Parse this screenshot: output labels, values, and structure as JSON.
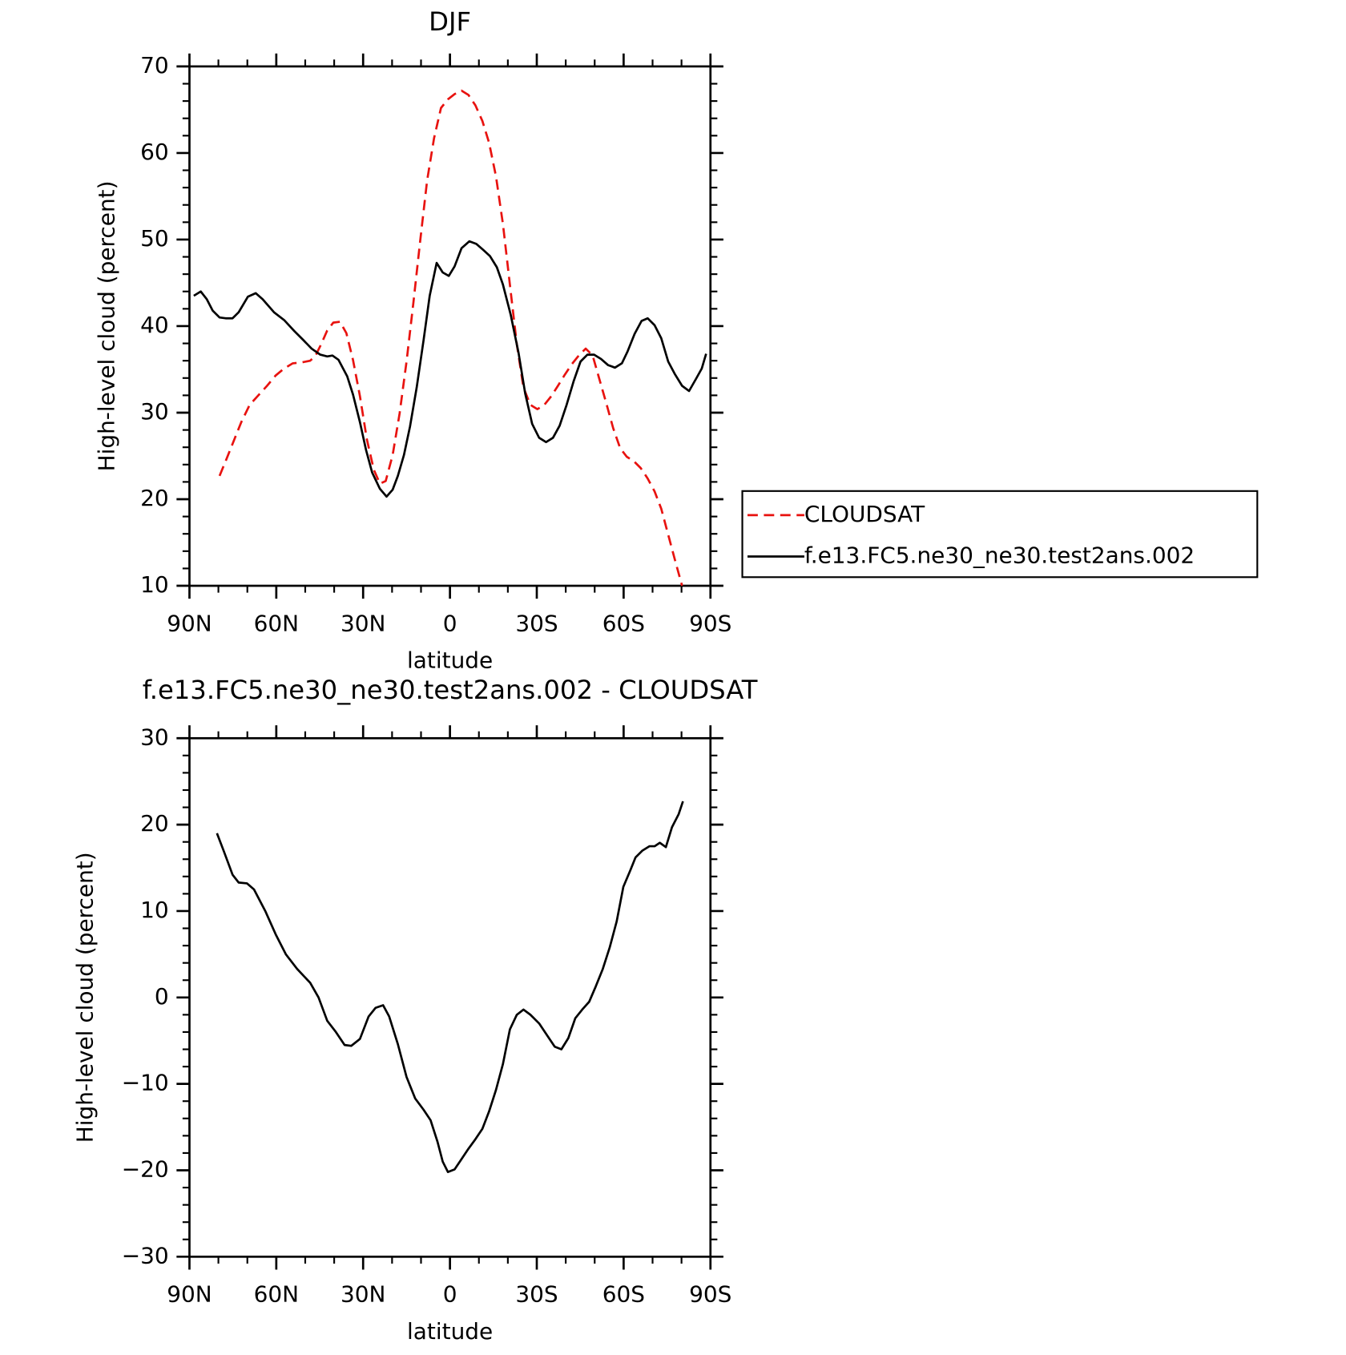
{
  "chart_data": [
    {
      "type": "line",
      "title": "DJF",
      "x_label": "latitude",
      "y_label": "High-level cloud (percent)",
      "xlim": [
        90,
        -90
      ],
      "xticks": [
        {
          "value": 90,
          "label": "90N"
        },
        {
          "value": 60,
          "label": "60N"
        },
        {
          "value": 30,
          "label": "30N"
        },
        0,
        {
          "value": -30,
          "label": "30S"
        },
        {
          "value": -60,
          "label": "60S"
        },
        {
          "value": -90,
          "label": "90S"
        }
      ],
      "ylim": [
        10,
        70
      ],
      "yticks": [
        10,
        20,
        30,
        40,
        50,
        60,
        70
      ],
      "legend": "right",
      "series": [
        {
          "name": "CLOUDSAT",
          "color": "#e8120f",
          "line_style": "dashed",
          "x": [
            79.6,
            77.5,
            75.1,
            72.1,
            69.2,
            66.2,
            63.2,
            60.2,
            57.3,
            54.3,
            51.3,
            48.3,
            46.6,
            44.5,
            42.4,
            40.3,
            38.0,
            35.8,
            33.5,
            31.1,
            28.7,
            26.3,
            24.2,
            22.2,
            19.8,
            17.4,
            15.0,
            12.6,
            10.3,
            7.9,
            5.5,
            3.1,
            0.7,
            -1.6,
            -4.0,
            -6.4,
            -8.8,
            -11.2,
            -13.5,
            -15.9,
            -18.3,
            -20.7,
            -23.1,
            -25.4,
            -27.8,
            -30.2,
            -32.6,
            -35.0,
            -37.3,
            -39.7,
            -42.1,
            -44.5,
            -46.9,
            -49.3,
            -51.6,
            -54.0,
            -56.4,
            -58.8,
            -61.1,
            -63.5,
            -65.9,
            -68.3,
            -70.7,
            -73.0,
            -75.4,
            -77.8,
            -80.2
          ],
          "values": [
            22.7,
            24.4,
            26.4,
            28.9,
            30.9,
            32.0,
            33.1,
            34.3,
            35.1,
            35.7,
            35.8,
            36.0,
            36.5,
            37.9,
            39.5,
            40.4,
            40.5,
            39.2,
            36.1,
            31.9,
            26.9,
            23.4,
            21.8,
            22.1,
            25.1,
            29.9,
            35.9,
            42.8,
            49.8,
            56.8,
            61.7,
            65.2,
            66.2,
            66.8,
            67.2,
            66.7,
            65.5,
            63.7,
            61.2,
            57.3,
            51.8,
            44.8,
            37.9,
            32.9,
            30.9,
            30.4,
            30.9,
            31.9,
            33.1,
            34.4,
            35.6,
            36.6,
            37.4,
            36.6,
            33.9,
            31.1,
            28.2,
            25.9,
            24.9,
            24.4,
            23.6,
            22.4,
            20.9,
            18.9,
            15.9,
            12.9,
            10.0
          ]
        },
        {
          "name": "f.e13.FC5.ne30_ne30.test2ans.002",
          "color": "#000000",
          "line_style": "solid",
          "x": [
            88.5,
            86.1,
            84.0,
            82.0,
            79.6,
            77.5,
            75.1,
            73.0,
            69.8,
            67.1,
            64.7,
            60.8,
            57.3,
            53.7,
            50.7,
            47.8,
            44.8,
            42.4,
            40.6,
            38.5,
            35.5,
            33.5,
            31.1,
            29.0,
            26.9,
            24.2,
            21.9,
            19.8,
            18.0,
            15.9,
            13.8,
            11.5,
            9.1,
            7.0,
            4.6,
            2.5,
            0.4,
            -1.6,
            -4.0,
            -6.7,
            -9.1,
            -11.5,
            -13.8,
            -16.2,
            -18.3,
            -21.0,
            -23.7,
            -26.0,
            -28.4,
            -30.8,
            -33.2,
            -35.6,
            -37.9,
            -40.3,
            -42.7,
            -45.1,
            -47.5,
            -49.8,
            -52.2,
            -54.6,
            -57.0,
            -59.4,
            -61.4,
            -63.8,
            -66.2,
            -68.3,
            -70.7,
            -73.0,
            -75.4,
            -77.8,
            -80.2,
            -82.6,
            -85.0,
            -87.0,
            -88.5
          ],
          "values": [
            43.5,
            44.0,
            43.1,
            41.8,
            41.0,
            40.9,
            40.9,
            41.6,
            43.4,
            43.8,
            43.1,
            41.6,
            40.7,
            39.4,
            38.4,
            37.4,
            36.7,
            36.5,
            36.6,
            36.1,
            34.2,
            32.1,
            28.9,
            25.7,
            23.1,
            21.2,
            20.3,
            21.1,
            22.7,
            25.1,
            28.4,
            32.9,
            38.4,
            43.5,
            47.3,
            46.2,
            45.8,
            46.9,
            49.0,
            49.8,
            49.5,
            48.8,
            48.1,
            46.8,
            44.8,
            41.3,
            36.9,
            32.2,
            28.7,
            27.1,
            26.6,
            27.1,
            28.5,
            30.9,
            33.6,
            35.9,
            36.7,
            36.7,
            36.2,
            35.5,
            35.2,
            35.7,
            37.1,
            39.1,
            40.6,
            40.9,
            40.1,
            38.6,
            35.9,
            34.4,
            33.1,
            32.5,
            33.9,
            35.1,
            36.8
          ]
        }
      ]
    },
    {
      "type": "line",
      "title": "f.e13.FC5.ne30_ne30.test2ans.002 - CLOUDSAT",
      "x_label": "latitude",
      "y_label": "High-level cloud (percent)",
      "xlim": [
        90,
        -90
      ],
      "xticks": [
        {
          "value": 90,
          "label": "90N"
        },
        {
          "value": 60,
          "label": "60N"
        },
        {
          "value": 30,
          "label": "30N"
        },
        0,
        {
          "value": -30,
          "label": "30S"
        },
        {
          "value": -60,
          "label": "60S"
        },
        {
          "value": -90,
          "label": "90S"
        }
      ],
      "ylim": [
        -30,
        30
      ],
      "yticks": [
        {
          "value": -30,
          "label": "−30"
        },
        {
          "value": -20,
          "label": "−20"
        },
        {
          "value": -10,
          "label": "−10"
        },
        0,
        10,
        20,
        30
      ],
      "series": [
        {
          "color": "#000000",
          "line_style": "solid",
          "x": [
            80.5,
            78.1,
            75.1,
            73.0,
            70.1,
            67.7,
            63.8,
            60.2,
            56.7,
            52.8,
            48.3,
            45.4,
            42.4,
            39.4,
            36.4,
            34.1,
            31.1,
            28.1,
            25.7,
            23.1,
            21.0,
            18.0,
            15.0,
            12.0,
            9.1,
            6.7,
            4.3,
            2.5,
            0.7,
            -1.6,
            -4.0,
            -6.4,
            -8.8,
            -11.2,
            -13.5,
            -15.9,
            -18.3,
            -20.7,
            -23.1,
            -25.4,
            -27.8,
            -30.8,
            -33.8,
            -36.2,
            -38.5,
            -40.9,
            -43.3,
            -45.7,
            -48.1,
            -50.4,
            -52.8,
            -55.2,
            -57.6,
            -59.9,
            -62.3,
            -64.1,
            -66.5,
            -68.9,
            -70.7,
            -72.5,
            -74.6,
            -76.7,
            -79.0,
            -80.5
          ],
          "values": [
            19.0,
            16.9,
            14.2,
            13.3,
            13.2,
            12.5,
            10.0,
            7.3,
            5.0,
            3.3,
            1.7,
            0.0,
            -2.7,
            -4.0,
            -5.5,
            -5.6,
            -4.8,
            -2.2,
            -1.2,
            -0.9,
            -2.2,
            -5.4,
            -9.2,
            -11.7,
            -13.0,
            -14.2,
            -16.7,
            -19.0,
            -20.2,
            -19.9,
            -18.7,
            -17.5,
            -16.4,
            -15.2,
            -13.2,
            -10.7,
            -7.7,
            -3.7,
            -2.0,
            -1.4,
            -2.0,
            -3.0,
            -4.5,
            -5.7,
            -6.0,
            -4.7,
            -2.4,
            -1.4,
            -0.5,
            1.3,
            3.3,
            5.8,
            8.8,
            12.8,
            14.7,
            16.2,
            17.0,
            17.5,
            17.5,
            17.9,
            17.4,
            19.7,
            21.2,
            22.7
          ]
        }
      ]
    }
  ]
}
